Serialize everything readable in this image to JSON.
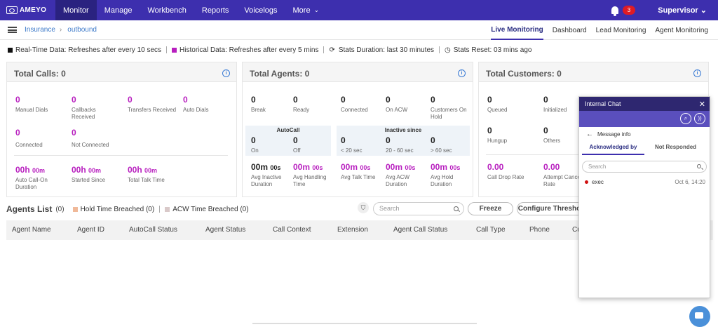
{
  "brand": "AMEYO",
  "nav": [
    "Monitor",
    "Manage",
    "Workbench",
    "Reports",
    "Voicelogs",
    "More"
  ],
  "notifications": "3",
  "user": "Supervisor",
  "breadcrumb": [
    "Insurance",
    "outbound"
  ],
  "monitor_tabs": [
    "Live Monitoring",
    "Dashboard",
    "Lead Monitoring",
    "Agent Monitoring"
  ],
  "info": {
    "realtime": "Real-Time Data: Refreshes after every 10 secs",
    "historical": "Historical Data: Refreshes after every 5 mins",
    "duration": "Stats Duration: last 30 minutes",
    "reset": "Stats Reset: 03 mins ago",
    "colors": {
      "realtime": "#111111",
      "historical": "#b81fbf"
    }
  },
  "calls": {
    "title": "Total Calls: 0",
    "row1": [
      {
        "v": "0",
        "l": "Manual Dials"
      },
      {
        "v": "0",
        "l": "Callbacks Received"
      },
      {
        "v": "0",
        "l": "Transfers Received"
      },
      {
        "v": "0",
        "l": "Auto Dials"
      }
    ],
    "row2": [
      {
        "v": "0",
        "l": "Connected"
      },
      {
        "v": "0",
        "l": "Not Connected"
      }
    ],
    "row3": [
      {
        "h": "00h",
        "m": "00m",
        "l": "Auto Call-On Duration"
      },
      {
        "h": "00h",
        "m": "00m",
        "l": "Started Since"
      },
      {
        "h": "00h",
        "m": "00m",
        "l": "Total Talk Time"
      }
    ]
  },
  "agents": {
    "title": "Total Agents: 0",
    "row1": [
      {
        "v": "0",
        "l": "Break"
      },
      {
        "v": "0",
        "l": "Ready"
      },
      {
        "v": "0",
        "l": "Connected"
      },
      {
        "v": "0",
        "l": "On ACW"
      },
      {
        "v": "0",
        "l": "Customers On Hold"
      }
    ],
    "autocall_label": "AutoCall",
    "inactive_label": "Inactive since",
    "row2": [
      {
        "v": "0",
        "l": "On"
      },
      {
        "v": "0",
        "l": "Off"
      },
      {
        "v": "0",
        "l": "< 20 sec"
      },
      {
        "v": "0",
        "l": "20 - 60 sec"
      },
      {
        "v": "0",
        "l": "> 60 sec"
      }
    ],
    "row3": [
      {
        "m": "00m",
        "s": "00s",
        "l": "Avg Inactive Duration"
      },
      {
        "m": "00m",
        "s": "00s",
        "l": "Avg Handling Time"
      },
      {
        "m": "00m",
        "s": "00s",
        "l": "Avg Talk Time"
      },
      {
        "m": "00m",
        "s": "00s",
        "l": "Avg ACW Duration"
      },
      {
        "m": "00m",
        "s": "00s",
        "l": "Avg Hold Duration"
      }
    ]
  },
  "customers": {
    "title": "Total Customers: 0",
    "row1": [
      {
        "v": "0",
        "l": "Queued"
      },
      {
        "v": "0",
        "l": "Initialized"
      }
    ],
    "row2": [
      {
        "v": "0",
        "l": "Hungup"
      },
      {
        "v": "0",
        "l": "Others"
      }
    ],
    "row3": [
      {
        "v": "0.00",
        "l": "Call Drop Rate"
      },
      {
        "v": "0.00",
        "l": "Attempt Cancel Rate"
      }
    ]
  },
  "agents_list": {
    "title": "Agents List",
    "count": "(0)",
    "hold": "Hold Time Breached (0)",
    "acw": "ACW Time Breached (0)",
    "hold_color": "#f0b999",
    "acw_color": "#d9c9c9",
    "search_placeholder": "Search",
    "freeze": "Freeze",
    "configure": "Configure Thresho",
    "columns": [
      "Agent Name",
      "Agent ID",
      "AutoCall Status",
      "Agent Status",
      "Call Context",
      "Extension",
      "Agent Call Status",
      "Call Type",
      "Phone",
      "Cu"
    ]
  },
  "chat": {
    "title": "Internal Chat",
    "message_info": "Message info",
    "tabs": [
      "Acknowledged by",
      "Not Responded"
    ],
    "search_placeholder": "Search",
    "entries": [
      {
        "name": "exec",
        "time": "Oct 6, 14:20"
      }
    ]
  }
}
